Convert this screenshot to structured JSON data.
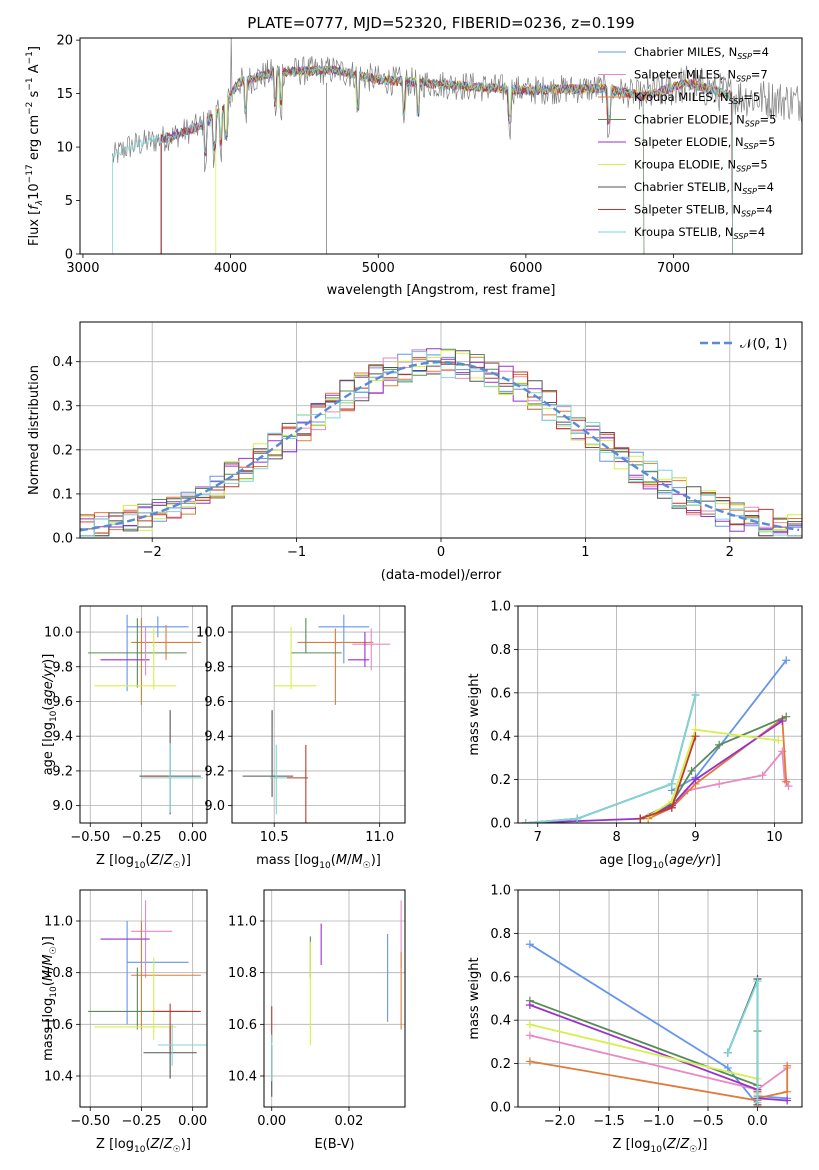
{
  "colors": {
    "chabrier_miles": "#6495ed",
    "salpeter_miles": "#e78ac3",
    "kroupa_miles": "#e07b39",
    "chabrier_elodie": "#5a8a5a",
    "salpeter_elodie": "#9932cc",
    "kroupa_elodie": "#d4f04a",
    "chabrier_stelib": "#555555",
    "salpeter_stelib": "#c0392b",
    "kroupa_stelib": "#7fd6d6"
  },
  "chart_data": [
    {
      "id": "spectrum",
      "type": "line",
      "title": "PLATE=0777, MJD=52320, FIBERID=0236, z=0.199",
      "xlabel": "wavelength [Angstrom, rest frame]",
      "ylabel": "Flux [f_λ 10^-17 erg cm^-2 s^-1 A^-1]",
      "xlim": [
        2980,
        7870
      ],
      "ylim": [
        0,
        20.2
      ],
      "xticks": [
        "3000",
        "4000",
        "5000",
        "6000",
        "7000"
      ],
      "yticks": [
        "0",
        "5",
        "10",
        "15",
        "20"
      ],
      "legend_position": "top-right",
      "legend": [
        {
          "label": "Chabrier MILES, N",
          "sub": "SSP",
          "val": "=4",
          "color": "chabrier_miles"
        },
        {
          "label": "Salpeter MILES, N",
          "sub": "SSP",
          "val": "=7",
          "color": "salpeter_miles"
        },
        {
          "label": "Kroupa MILES, N",
          "sub": "SSP",
          "val": "=5",
          "color": "kroupa_miles"
        },
        {
          "label": "Chabrier ELODIE, N",
          "sub": "SSP",
          "val": "=5",
          "color": "chabrier_elodie"
        },
        {
          "label": "Salpeter ELODIE, N",
          "sub": "SSP",
          "val": "=5",
          "color": "salpeter_elodie"
        },
        {
          "label": "Kroupa ELODIE, N",
          "sub": "SSP",
          "val": "=5",
          "color": "kroupa_elodie"
        },
        {
          "label": "Chabrier STELIB, N",
          "sub": "SSP",
          "val": "=4",
          "color": "chabrier_stelib"
        },
        {
          "label": "Salpeter STELIB, N",
          "sub": "SSP",
          "val": "=4",
          "color": "salpeter_stelib"
        },
        {
          "label": "Kroupa STELIB, N",
          "sub": "SSP",
          "val": "=4",
          "color": "kroupa_stelib"
        }
      ],
      "continuum": [
        [
          3200,
          9.0
        ],
        [
          3300,
          10.0
        ],
        [
          3600,
          11.0
        ],
        [
          3800,
          12.0
        ],
        [
          3950,
          13.5
        ],
        [
          4050,
          16.0
        ],
        [
          4300,
          17.0
        ],
        [
          4700,
          17.2
        ],
        [
          5000,
          16.3
        ],
        [
          5500,
          15.8
        ],
        [
          6000,
          15.3
        ],
        [
          6500,
          15.5
        ],
        [
          6800,
          14.8
        ],
        [
          7100,
          16.0
        ],
        [
          7400,
          14.8
        ],
        [
          7870,
          14.2
        ]
      ],
      "model_starts": {
        "kroupa_stelib": 3200,
        "salpeter_stelib": 3530,
        "kroupa_elodie": 3900
      },
      "model_ends": {
        "chabrier_elodie": 6800,
        "salpeter_stelib": 7400
      }
    },
    {
      "id": "residual_hist",
      "type": "histogram",
      "xlabel": "(data-model)/error",
      "ylabel": "Normed distribution",
      "xlim": [
        -2.5,
        2.5
      ],
      "ylim": [
        0,
        0.49
      ],
      "xticks": [
        "−2",
        "−1",
        "0",
        "1",
        "2"
      ],
      "yticks": [
        "0.0",
        "0.1",
        "0.2",
        "0.3",
        "0.4"
      ],
      "bin_width": 0.1,
      "reference_curve": "N(0,1)",
      "legend_label": "𝒩(0, 1)",
      "legend_position": "top-right"
    },
    {
      "id": "age_vs_Z",
      "type": "errorbar",
      "xlabel": "Z [log₁₀(Z/Z☉)]",
      "ylabel": "age  [log₁₀(age/yr)]",
      "xlim": [
        -0.55,
        0.07
      ],
      "ylim": [
        8.9,
        10.15
      ],
      "xticks": [
        "−0.50",
        "−0.25",
        "0.00"
      ],
      "yticks": [
        "9.0",
        "9.2",
        "9.4",
        "9.6",
        "9.8",
        "10.0"
      ],
      "points": [
        {
          "color": "chabrier_miles",
          "x": -0.17,
          "xerr": 0.15,
          "y": 10.03,
          "yerr": 0.06
        },
        {
          "color": "chabrier_miles",
          "x": -0.32,
          "xerr": 0.0,
          "y": 9.88,
          "yerr": 0.22
        },
        {
          "color": "kroupa_miles",
          "x": -0.13,
          "xerr": 0.17,
          "y": 9.94,
          "yerr": 0.1
        },
        {
          "color": "kroupa_miles",
          "x": -0.25,
          "xerr": 0.0,
          "y": 9.83,
          "yerr": 0.25
        },
        {
          "color": "chabrier_elodie",
          "x": -0.27,
          "xerr": 0.24,
          "y": 9.88,
          "yerr": 0.2
        },
        {
          "color": "salpeter_elodie",
          "x": -0.33,
          "xerr": 0.12,
          "y": 9.84,
          "yerr": 0.0
        },
        {
          "color": "kroupa_elodie",
          "x": -0.28,
          "xerr": 0.2,
          "y": 9.69,
          "yerr": 0.0
        },
        {
          "color": "kroupa_elodie",
          "x": -0.19,
          "xerr": 0.0,
          "y": 9.85,
          "yerr": 0.18
        },
        {
          "color": "salpeter_miles",
          "x": -0.23,
          "xerr": 0.0,
          "y": 9.89,
          "yerr": 0.14
        },
        {
          "color": "chabrier_stelib",
          "x": -0.11,
          "xerr": 0.15,
          "y": 9.17,
          "yerr": 0.0
        },
        {
          "color": "chabrier_stelib",
          "x": -0.11,
          "xerr": 0.0,
          "y": 9.25,
          "yerr": 0.3
        },
        {
          "color": "salpeter_stelib",
          "x": -0.18,
          "xerr": 0.06,
          "y": 9.17,
          "yerr": 0.0
        },
        {
          "color": "kroupa_stelib",
          "x": -0.1,
          "xerr": 0.15,
          "y": 9.16,
          "yerr": 0.0
        },
        {
          "color": "kroupa_stelib",
          "x": -0.11,
          "xerr": 0.0,
          "y": 9.16,
          "yerr": 0.2
        }
      ]
    },
    {
      "id": "age_vs_mass",
      "type": "errorbar",
      "xlabel": "mass [log₁₀(M/M☉)]",
      "ylabel": "",
      "xlim": [
        10.3,
        11.12
      ],
      "ylim": [
        8.9,
        10.15
      ],
      "xticks": [
        "10.5",
        "11.0"
      ],
      "yticks": [
        "9.0",
        "9.2",
        "9.4",
        "9.6",
        "9.8",
        "10.0"
      ],
      "points": [
        {
          "color": "chabrier_miles",
          "x": 10.83,
          "xerr": 0.0,
          "y": 9.96,
          "yerr": 0.14
        },
        {
          "color": "chabrier_miles",
          "x": 10.83,
          "xerr": 0.12,
          "y": 10.03,
          "yerr": 0.0
        },
        {
          "color": "kroupa_miles",
          "x": 10.79,
          "xerr": 0.18,
          "y": 9.94,
          "yerr": 0.0
        },
        {
          "color": "kroupa_miles",
          "x": 10.79,
          "xerr": 0.0,
          "y": 9.8,
          "yerr": 0.22
        },
        {
          "color": "salpeter_miles",
          "x": 10.96,
          "xerr": 0.09,
          "y": 9.93,
          "yerr": 0.0
        },
        {
          "color": "salpeter_miles",
          "x": 10.96,
          "xerr": 0.0,
          "y": 9.9,
          "yerr": 0.12
        },
        {
          "color": "chabrier_elodie",
          "x": 10.65,
          "xerr": 0.0,
          "y": 9.98,
          "yerr": 0.1
        },
        {
          "color": "chabrier_elodie",
          "x": 10.7,
          "xerr": 0.12,
          "y": 9.88,
          "yerr": 0.0
        },
        {
          "color": "salpeter_elodie",
          "x": 10.93,
          "xerr": 0.0,
          "y": 9.9,
          "yerr": 0.1
        },
        {
          "color": "salpeter_elodie",
          "x": 10.9,
          "xerr": 0.05,
          "y": 9.84,
          "yerr": 0.0
        },
        {
          "color": "kroupa_elodie",
          "x": 10.58,
          "xerr": 0.0,
          "y": 9.85,
          "yerr": 0.18
        },
        {
          "color": "kroupa_elodie",
          "x": 10.6,
          "xerr": 0.1,
          "y": 9.69,
          "yerr": 0.0
        },
        {
          "color": "chabrier_stelib",
          "x": 10.49,
          "xerr": 0.0,
          "y": 9.3,
          "yerr": 0.25
        },
        {
          "color": "chabrier_stelib",
          "x": 10.47,
          "xerr": 0.12,
          "y": 9.17,
          "yerr": 0.0
        },
        {
          "color": "salpeter_stelib",
          "x": 10.65,
          "xerr": 0.0,
          "y": 9.1,
          "yerr": 0.25
        },
        {
          "color": "salpeter_stelib",
          "x": 10.61,
          "xerr": 0.05,
          "y": 9.16,
          "yerr": 0.0
        },
        {
          "color": "kroupa_stelib",
          "x": 10.51,
          "xerr": 0.0,
          "y": 9.15,
          "yerr": 0.2
        },
        {
          "color": "kroupa_stelib",
          "x": 10.52,
          "xerr": 0.04,
          "y": 9.16,
          "yerr": 0.0
        }
      ]
    },
    {
      "id": "mass_weight_vs_age",
      "type": "line",
      "xlabel": "age  [log₁₀(age/yr)]",
      "ylabel": "mass weight",
      "xlim": [
        6.75,
        10.35
      ],
      "ylim": [
        0,
        1.0
      ],
      "xticks": [
        "7",
        "8",
        "9",
        "10"
      ],
      "yticks": [
        "0.0",
        "0.2",
        "0.4",
        "0.6",
        "0.8",
        "1.0"
      ],
      "series": [
        {
          "color": "chabrier_miles",
          "x": [
            8.7,
            9.0,
            10.15
          ],
          "y": [
            0.15,
            0.21,
            0.75
          ]
        },
        {
          "color": "salpeter_miles",
          "x": [
            8.7,
            8.9,
            9.3,
            9.85,
            10.1,
            10.13,
            10.18
          ],
          "y": [
            0.07,
            0.15,
            0.18,
            0.22,
            0.33,
            0.2,
            0.17
          ]
        },
        {
          "color": "kroupa_miles",
          "x": [
            8.4,
            8.7,
            9.0,
            10.1,
            10.15
          ],
          "y": [
            0.02,
            0.07,
            0.18,
            0.48,
            0.19
          ]
        },
        {
          "color": "chabrier_elodie",
          "x": [
            8.3,
            8.7,
            8.95,
            9.3,
            10.15
          ],
          "y": [
            0.02,
            0.09,
            0.24,
            0.36,
            0.49
          ]
        },
        {
          "color": "salpeter_elodie",
          "x": [
            6.85,
            8.3,
            8.7,
            9.0,
            10.1
          ],
          "y": [
            0.0,
            0.02,
            0.08,
            0.2,
            0.47
          ]
        },
        {
          "color": "kroupa_elodie",
          "x": [
            8.4,
            8.7,
            9.0,
            10.05
          ],
          "y": [
            0.03,
            0.1,
            0.43,
            0.38
          ]
        },
        {
          "color": "chabrier_stelib",
          "x": [
            6.85,
            7.5,
            8.7,
            9.0
          ],
          "y": [
            0.0,
            0.02,
            0.18,
            0.59
          ]
        },
        {
          "color": "salpeter_stelib",
          "x": [
            8.3,
            8.7,
            9.0
          ],
          "y": [
            0.02,
            0.07,
            0.4
          ]
        },
        {
          "color": "kroupa_stelib",
          "x": [
            6.85,
            7.5,
            8.7,
            9.0
          ],
          "y": [
            0.0,
            0.02,
            0.18,
            0.59
          ]
        }
      ]
    },
    {
      "id": "mass_vs_Z",
      "type": "errorbar",
      "xlabel": "Z [log₁₀(Z/Z☉)]",
      "ylabel": "mass [log₁₀(M/M☉)]",
      "xlim": [
        -0.55,
        0.07
      ],
      "ylim": [
        10.28,
        11.12
      ],
      "xticks": [
        "−0.50",
        "−0.25",
        "0.00"
      ],
      "yticks": [
        "10.4",
        "10.6",
        "10.8",
        "11.0"
      ],
      "points": [
        {
          "color": "chabrier_miles",
          "x": -0.17,
          "xerr": 0.15,
          "y": 10.84,
          "yerr": 0.0
        },
        {
          "color": "chabrier_miles",
          "x": -0.32,
          "xerr": 0.0,
          "y": 10.8,
          "yerr": 0.2
        },
        {
          "color": "salpeter_miles",
          "x": -0.2,
          "xerr": 0.1,
          "y": 10.96,
          "yerr": 0.0
        },
        {
          "color": "salpeter_miles",
          "x": -0.23,
          "xerr": 0.0,
          "y": 10.93,
          "yerr": 0.15
        },
        {
          "color": "kroupa_miles",
          "x": -0.13,
          "xerr": 0.17,
          "y": 10.79,
          "yerr": 0.0
        },
        {
          "color": "kroupa_miles",
          "x": -0.25,
          "xerr": 0.0,
          "y": 10.79,
          "yerr": 0.21
        },
        {
          "color": "chabrier_elodie",
          "x": -0.27,
          "xerr": 0.24,
          "y": 10.65,
          "yerr": 0.0
        },
        {
          "color": "chabrier_elodie",
          "x": -0.27,
          "xerr": 0.0,
          "y": 10.7,
          "yerr": 0.12
        },
        {
          "color": "salpeter_elodie",
          "x": -0.33,
          "xerr": 0.12,
          "y": 10.93,
          "yerr": 0.0
        },
        {
          "color": "kroupa_elodie",
          "x": -0.28,
          "xerr": 0.2,
          "y": 10.59,
          "yerr": 0.0
        },
        {
          "color": "kroupa_elodie",
          "x": -0.19,
          "xerr": 0.0,
          "y": 10.7,
          "yerr": 0.16
        },
        {
          "color": "chabrier_stelib",
          "x": -0.11,
          "xerr": 0.13,
          "y": 10.49,
          "yerr": 0.0
        },
        {
          "color": "chabrier_stelib",
          "x": -0.11,
          "xerr": 0.0,
          "y": 10.49,
          "yerr": 0.1
        },
        {
          "color": "salpeter_stelib",
          "x": -0.08,
          "xerr": 0.12,
          "y": 10.65,
          "yerr": 0.0
        },
        {
          "color": "salpeter_stelib",
          "x": -0.11,
          "xerr": 0.0,
          "y": 10.59,
          "yerr": 0.09
        },
        {
          "color": "kroupa_stelib",
          "x": -0.05,
          "xerr": 0.12,
          "y": 10.52,
          "yerr": 0.0
        },
        {
          "color": "kroupa_stelib",
          "x": -0.1,
          "xerr": 0.0,
          "y": 10.52,
          "yerr": 0.08
        }
      ]
    },
    {
      "id": "mass_vs_ebv",
      "type": "errorbar",
      "xlabel": "E(B-V)",
      "ylabel": "",
      "xlim": [
        -0.002,
        0.0345
      ],
      "ylim": [
        10.28,
        11.12
      ],
      "xticks": [
        "0.00",
        "0.02"
      ],
      "yticks": [
        "10.4",
        "10.6",
        "10.8",
        "11.0"
      ],
      "points": [
        {
          "color": "chabrier_miles",
          "x": 0.03,
          "xerr": 0.0,
          "y": 10.78,
          "yerr": 0.17
        },
        {
          "color": "salpeter_miles",
          "x": 0.0335,
          "xerr": 0.0,
          "y": 10.95,
          "yerr": 0.13
        },
        {
          "color": "kroupa_miles",
          "x": 0.0335,
          "xerr": 0.0,
          "y": 10.73,
          "yerr": 0.15
        },
        {
          "color": "chabrier_elodie",
          "x": 0.01,
          "xerr": 0.0,
          "y": 10.86,
          "yerr": 0.08
        },
        {
          "color": "salpeter_elodie",
          "x": 0.0128,
          "xerr": 0.0,
          "y": 10.91,
          "yerr": 0.08
        },
        {
          "color": "kroupa_elodie",
          "x": 0.01,
          "xerr": 0.0,
          "y": 10.72,
          "yerr": 0.2
        },
        {
          "color": "chabrier_stelib",
          "x": 0.0,
          "xerr": 0.0,
          "y": 10.42,
          "yerr": 0.1
        },
        {
          "color": "salpeter_stelib",
          "x": 0.0,
          "xerr": 0.0,
          "y": 10.6,
          "yerr": 0.07
        },
        {
          "color": "kroupa_stelib",
          "x": 0.0,
          "xerr": 0.0,
          "y": 10.47,
          "yerr": 0.09
        }
      ]
    },
    {
      "id": "mass_weight_vs_Z",
      "type": "line",
      "xlabel": "Z [log₁₀(Z/Z☉)]",
      "ylabel": "mass weight",
      "xlim": [
        -2.42,
        0.45
      ],
      "ylim": [
        0,
        1.0
      ],
      "xticks": [
        "−2.0",
        "−1.5",
        "−1.0",
        "−0.5",
        "0.0"
      ],
      "yticks": [
        "0.0",
        "0.2",
        "0.4",
        "0.6",
        "0.8",
        "1.0"
      ],
      "series": [
        {
          "color": "chabrier_miles",
          "x": [
            -2.3,
            -0.3,
            0.0,
            0.0,
            0.3
          ],
          "y": [
            0.75,
            0.18,
            0.01,
            0.05,
            0.04
          ]
        },
        {
          "color": "salpeter_miles",
          "x": [
            -2.3,
            0.0,
            0.3
          ],
          "y": [
            0.33,
            0.08,
            0.18
          ]
        },
        {
          "color": "kroupa_miles",
          "x": [
            -2.3,
            0.0,
            0.0,
            0.3,
            0.3
          ],
          "y": [
            0.21,
            0.03,
            0.04,
            0.07,
            0.19
          ]
        },
        {
          "color": "chabrier_elodie",
          "x": [
            -2.3,
            0.0,
            0.0
          ],
          "y": [
            0.49,
            0.1,
            0.35
          ]
        },
        {
          "color": "salpeter_elodie",
          "x": [
            -2.3,
            0.0,
            0.0,
            0.3
          ],
          "y": [
            0.47,
            0.08,
            0.04,
            0.03
          ]
        },
        {
          "color": "kroupa_elodie",
          "x": [
            -2.3,
            0.0,
            0.0
          ],
          "y": [
            0.38,
            0.13,
            0.06
          ]
        },
        {
          "color": "chabrier_stelib",
          "x": [
            -0.3,
            0.0,
            0.0
          ],
          "y": [
            0.25,
            0.59,
            0.0
          ]
        },
        {
          "color": "salpeter_stelib",
          "x": [
            0.0,
            0.0
          ],
          "y": [
            0.01,
            0.07
          ]
        },
        {
          "color": "kroupa_stelib",
          "x": [
            -0.3,
            0.0,
            0.0
          ],
          "y": [
            0.25,
            0.58,
            0.02
          ]
        }
      ]
    }
  ]
}
